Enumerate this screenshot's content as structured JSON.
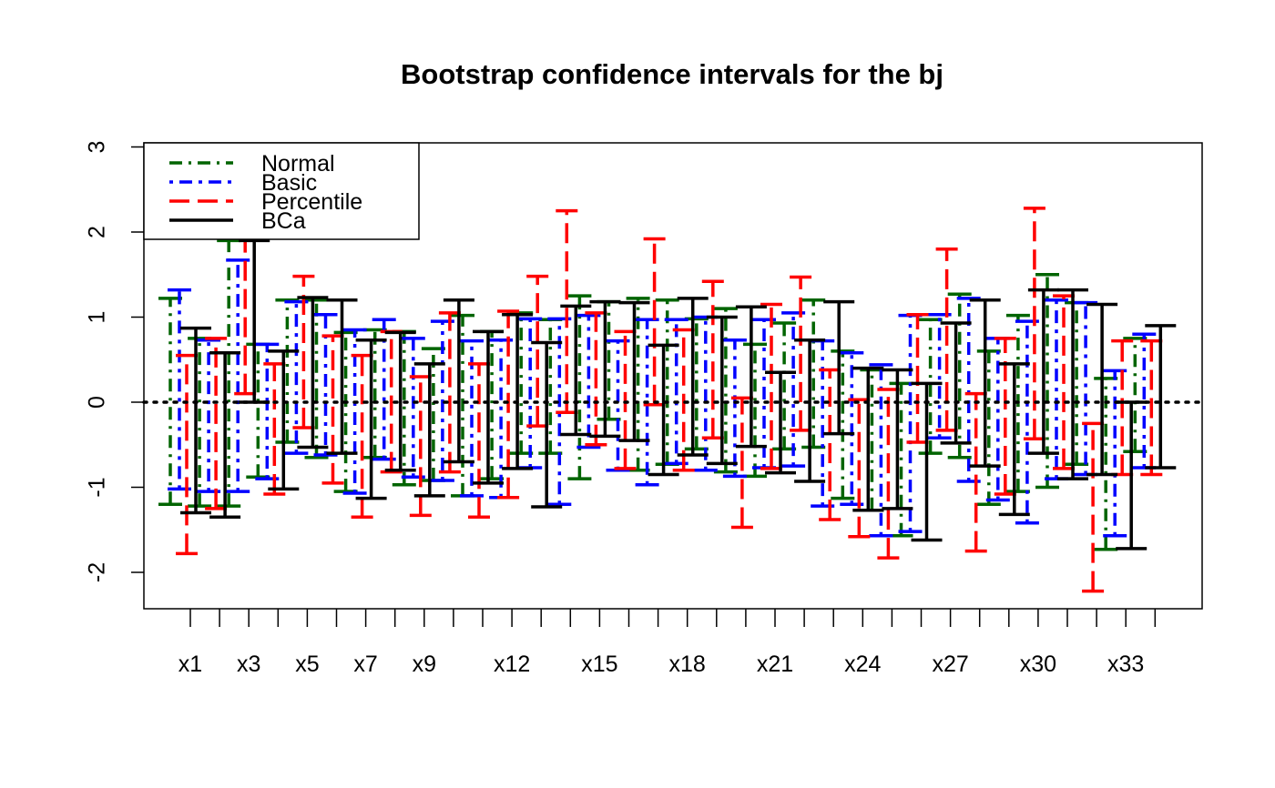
{
  "chart_data": {
    "type": "errorbar",
    "title": "Bootstrap confidence intervals for the bj",
    "xlabel": "",
    "ylabel": "",
    "ylim": [
      -2.45,
      3.0
    ],
    "y_ticks": [
      -2,
      -1,
      0,
      1,
      2,
      3
    ],
    "x_tick_labels": [
      "x1",
      "x3",
      "x5",
      "x7",
      "x9",
      "x12",
      "x15",
      "x18",
      "x21",
      "x24",
      "x27",
      "x30",
      "x33"
    ],
    "x_tick_label_positions": [
      1,
      3,
      5,
      7,
      9,
      12,
      15,
      18,
      21,
      24,
      27,
      30,
      33
    ],
    "n_variables": 34,
    "reference_line": {
      "y": 0,
      "style": "dotted",
      "color": "#000000"
    },
    "grid": false,
    "legend": {
      "position": "top-left"
    },
    "series": [
      {
        "name": "Normal",
        "color": "#006400",
        "dash": "14,7,3,7",
        "intervals": [
          [
            -1.2,
            1.22
          ],
          [
            -1.22,
            0.75
          ],
          [
            -1.22,
            1.9
          ],
          [
            -0.88,
            0.68
          ],
          [
            -0.47,
            1.2
          ],
          [
            -0.65,
            1.2
          ],
          [
            -1.05,
            0.82
          ],
          [
            -0.65,
            0.85
          ],
          [
            -0.97,
            0.83
          ],
          [
            -0.92,
            0.63
          ],
          [
            -1.1,
            1.02
          ],
          [
            -0.9,
            0.83
          ],
          [
            -0.6,
            1.05
          ],
          [
            -0.6,
            0.97
          ],
          [
            -0.9,
            1.25
          ],
          [
            -0.2,
            1.18
          ],
          [
            -0.8,
            1.22
          ],
          [
            -0.73,
            1.2
          ],
          [
            -0.55,
            0.98
          ],
          [
            -0.82,
            1.1
          ],
          [
            -0.87,
            0.68
          ],
          [
            -0.55,
            0.93
          ],
          [
            -0.53,
            1.2
          ],
          [
            -1.13,
            0.6
          ],
          [
            -1.27,
            0.38
          ],
          [
            -1.57,
            0.22
          ],
          [
            -0.6,
            0.97
          ],
          [
            -0.65,
            1.27
          ],
          [
            -1.2,
            0.6
          ],
          [
            -1.05,
            1.02
          ],
          [
            -1.0,
            1.5
          ],
          [
            -0.73,
            1.17
          ],
          [
            -1.73,
            0.28
          ],
          [
            -0.58,
            0.75
          ]
        ]
      },
      {
        "name": "Basic",
        "color": "#0000ff",
        "dash": "4,7,14,7",
        "intervals": [
          [
            -1.02,
            1.32
          ],
          [
            -1.05,
            0.73
          ],
          [
            -1.05,
            1.67
          ],
          [
            -0.9,
            0.68
          ],
          [
            -0.6,
            1.18
          ],
          [
            -0.62,
            1.03
          ],
          [
            -1.07,
            0.85
          ],
          [
            -0.67,
            0.97
          ],
          [
            -0.88,
            0.75
          ],
          [
            -0.92,
            0.95
          ],
          [
            -1.1,
            0.72
          ],
          [
            -1.12,
            0.73
          ],
          [
            -0.77,
            0.98
          ],
          [
            -1.2,
            0.98
          ],
          [
            -0.53,
            1.02
          ],
          [
            -0.8,
            0.72
          ],
          [
            -0.97,
            0.97
          ],
          [
            -0.72,
            0.97
          ],
          [
            -0.8,
            1.0
          ],
          [
            -0.87,
            0.73
          ],
          [
            -0.77,
            0.97
          ],
          [
            -0.75,
            1.05
          ],
          [
            -1.22,
            0.72
          ],
          [
            -1.2,
            0.58
          ],
          [
            -1.57,
            0.44
          ],
          [
            -1.52,
            1.02
          ],
          [
            -0.42,
            1.03
          ],
          [
            -0.93,
            1.22
          ],
          [
            -1.15,
            0.75
          ],
          [
            -1.42,
            0.95
          ],
          [
            -0.9,
            1.2
          ],
          [
            -0.85,
            1.17
          ],
          [
            -1.57,
            0.37
          ],
          [
            -0.77,
            0.8
          ]
        ]
      },
      {
        "name": "Percentile",
        "color": "#ff0000",
        "dash": "22,9",
        "intervals": [
          [
            -1.78,
            0.55
          ],
          [
            -1.25,
            0.75
          ],
          [
            0.1,
            2.0
          ],
          [
            -1.08,
            0.45
          ],
          [
            -0.3,
            1.48
          ],
          [
            -0.95,
            0.78
          ],
          [
            -1.35,
            0.55
          ],
          [
            -0.82,
            0.83
          ],
          [
            -1.33,
            0.3
          ],
          [
            -0.82,
            1.05
          ],
          [
            -1.35,
            0.45
          ],
          [
            -1.12,
            1.07
          ],
          [
            -0.28,
            1.48
          ],
          [
            -0.12,
            2.25
          ],
          [
            -0.5,
            1.05
          ],
          [
            -0.78,
            0.83
          ],
          [
            -0.03,
            1.92
          ],
          [
            -0.8,
            0.85
          ],
          [
            -0.42,
            1.42
          ],
          [
            -1.47,
            0.05
          ],
          [
            -0.78,
            1.15
          ],
          [
            -0.33,
            1.47
          ],
          [
            -1.38,
            0.38
          ],
          [
            -1.58,
            0.03
          ],
          [
            -1.83,
            0.15
          ],
          [
            -0.47,
            1.03
          ],
          [
            -0.33,
            1.8
          ],
          [
            -1.75,
            0.1
          ],
          [
            -1.08,
            0.75
          ],
          [
            -0.43,
            2.28
          ],
          [
            -0.78,
            1.25
          ],
          [
            -2.22,
            -0.25
          ],
          [
            -0.85,
            0.72
          ],
          [
            -0.85,
            0.72
          ]
        ]
      },
      {
        "name": "BCa",
        "color": "#000000",
        "dash": "",
        "intervals": [
          [
            -1.3,
            0.87
          ],
          [
            -1.35,
            0.58
          ],
          [
            0.0,
            1.9
          ],
          [
            -1.02,
            0.6
          ],
          [
            -0.53,
            1.23
          ],
          [
            -0.6,
            1.2
          ],
          [
            -1.13,
            0.73
          ],
          [
            -0.8,
            0.82
          ],
          [
            -1.1,
            0.45
          ],
          [
            -0.7,
            1.2
          ],
          [
            -0.95,
            0.83
          ],
          [
            -0.78,
            1.03
          ],
          [
            -1.23,
            0.7
          ],
          [
            -0.38,
            1.13
          ],
          [
            -0.4,
            1.18
          ],
          [
            -0.45,
            1.17
          ],
          [
            -0.85,
            0.67
          ],
          [
            -0.62,
            1.22
          ],
          [
            -0.72,
            1.0
          ],
          [
            -0.52,
            1.12
          ],
          [
            -0.83,
            0.35
          ],
          [
            -0.93,
            0.73
          ],
          [
            -0.37,
            1.18
          ],
          [
            -1.27,
            0.4
          ],
          [
            -1.25,
            0.38
          ],
          [
            -1.62,
            0.22
          ],
          [
            -0.48,
            0.93
          ],
          [
            -0.75,
            1.2
          ],
          [
            -1.32,
            0.45
          ],
          [
            -0.6,
            1.32
          ],
          [
            -0.9,
            1.32
          ],
          [
            -0.85,
            1.15
          ],
          [
            -1.72,
            0.0
          ],
          [
            -0.77,
            0.9
          ]
        ]
      }
    ]
  }
}
